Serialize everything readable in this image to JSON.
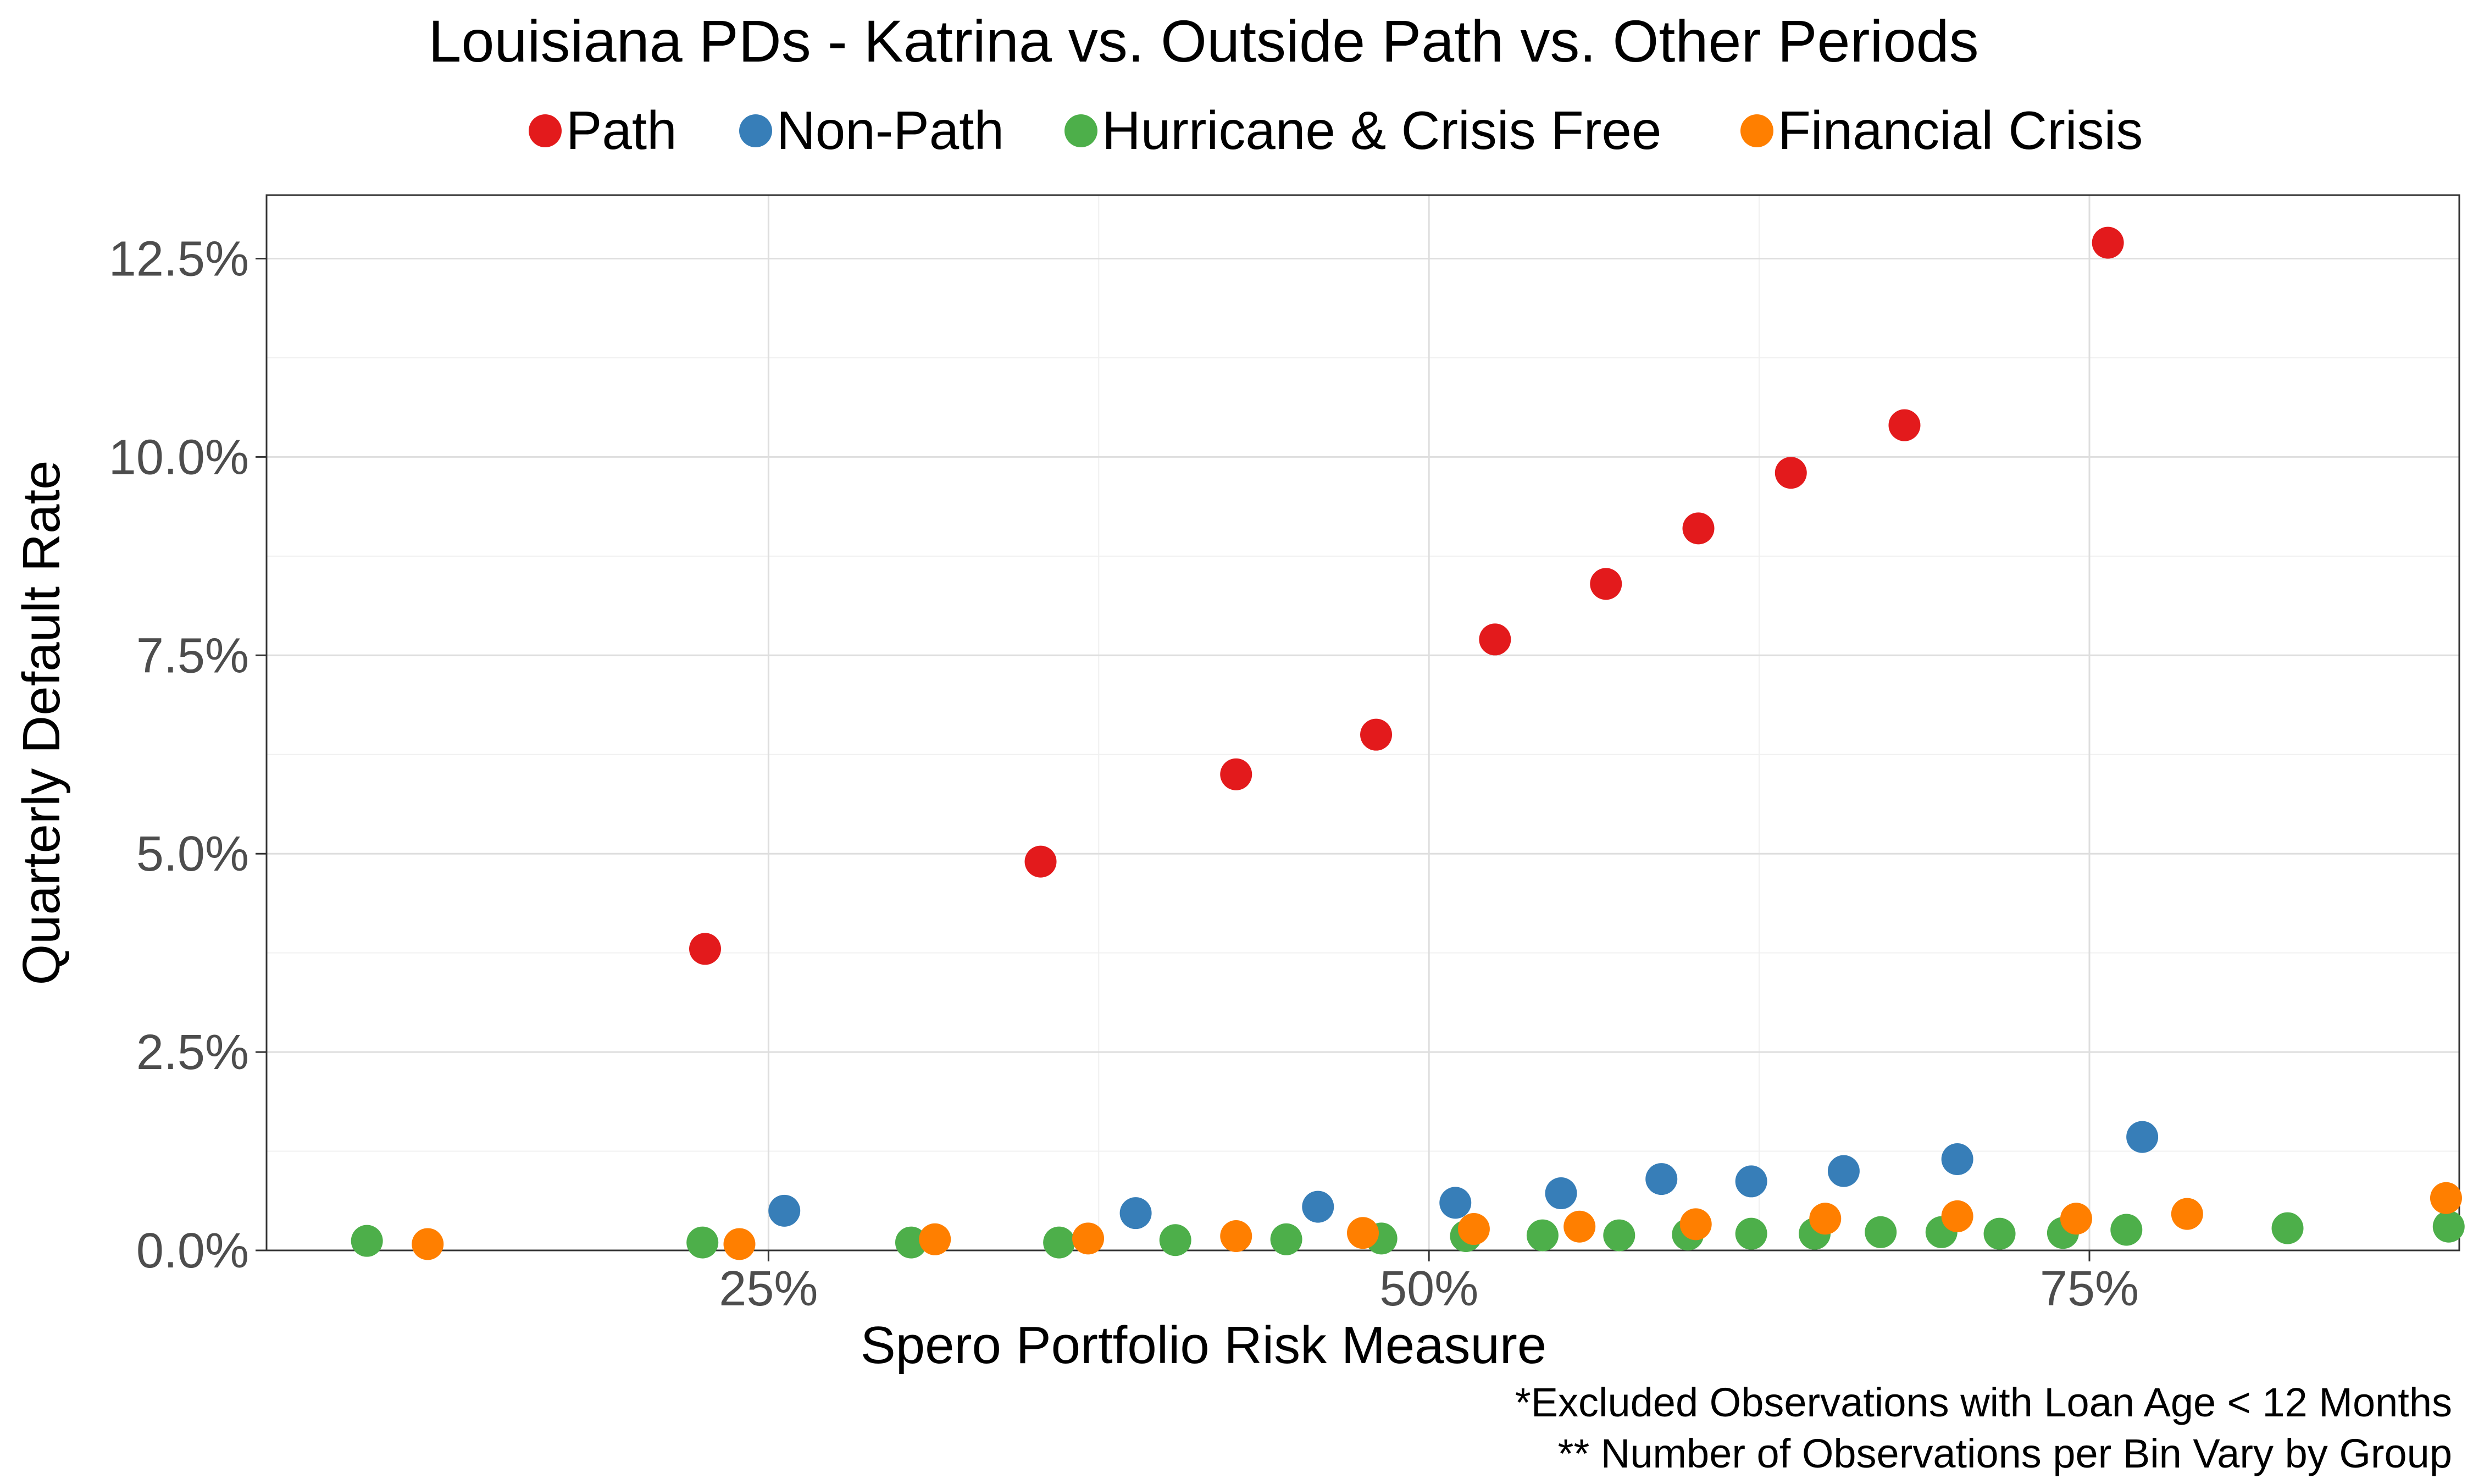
{
  "chart_data": {
    "type": "scatter",
    "title": "Louisiana PDs - Katrina vs. Outside Path vs. Other Periods",
    "xlabel": "Spero Portfolio Risk Measure",
    "ylabel": "Quarterly Default Rate",
    "xlim": [
      0.06,
      0.89
    ],
    "ylim": [
      0.0,
      0.133
    ],
    "x_ticks": [
      0.25,
      0.5,
      0.75
    ],
    "x_tick_labels": [
      "25%",
      "50%",
      "75%"
    ],
    "y_ticks": [
      0.0,
      0.025,
      0.05,
      0.075,
      0.1,
      0.125
    ],
    "y_tick_labels": [
      "0.0%",
      "2.5%",
      "5.0%",
      "7.5%",
      "10.0%",
      "12.5%"
    ],
    "grid": true,
    "legend_position": "top",
    "captions": [
      "*Excluded Observations with Loan Age < 12 Months",
      "** Number of Observations per Bin Vary by Group"
    ],
    "series": [
      {
        "name": "Path",
        "color": "#e31a1c",
        "points": [
          [
            0.226,
            0.038
          ],
          [
            0.353,
            0.049
          ],
          [
            0.427,
            0.06
          ],
          [
            0.48,
            0.065
          ],
          [
            0.525,
            0.077
          ],
          [
            0.567,
            0.084
          ],
          [
            0.602,
            0.091
          ],
          [
            0.637,
            0.098
          ],
          [
            0.68,
            0.104
          ],
          [
            0.757,
            0.127
          ]
        ]
      },
      {
        "name": "Non-Path",
        "color": "#377eb8",
        "points": [
          [
            0.256,
            0.005
          ],
          [
            0.389,
            0.0047
          ],
          [
            0.458,
            0.0055
          ],
          [
            0.51,
            0.006
          ],
          [
            0.55,
            0.0072
          ],
          [
            0.588,
            0.009
          ],
          [
            0.622,
            0.0087
          ],
          [
            0.657,
            0.01
          ],
          [
            0.7,
            0.0115
          ],
          [
            0.77,
            0.0143
          ]
        ]
      },
      {
        "name": "Hurricane & Crisis Free",
        "color": "#4daf4a",
        "points": [
          [
            0.098,
            0.0012
          ],
          [
            0.225,
            0.001
          ],
          [
            0.304,
            0.001
          ],
          [
            0.36,
            0.001
          ],
          [
            0.404,
            0.0013
          ],
          [
            0.446,
            0.0014
          ],
          [
            0.482,
            0.0015
          ],
          [
            0.514,
            0.0018
          ],
          [
            0.543,
            0.0019
          ],
          [
            0.572,
            0.0019
          ],
          [
            0.598,
            0.002
          ],
          [
            0.622,
            0.0021
          ],
          [
            0.646,
            0.0021
          ],
          [
            0.671,
            0.0023
          ],
          [
            0.694,
            0.0023
          ],
          [
            0.716,
            0.0021
          ],
          [
            0.74,
            0.0022
          ],
          [
            0.764,
            0.0026
          ],
          [
            0.825,
            0.0028
          ],
          [
            0.886,
            0.003
          ]
        ]
      },
      {
        "name": "Financial Crisis",
        "color": "#ff7f00",
        "points": [
          [
            0.121,
            0.0008
          ],
          [
            0.239,
            0.0008
          ],
          [
            0.313,
            0.0014
          ],
          [
            0.371,
            0.0015
          ],
          [
            0.427,
            0.0018
          ],
          [
            0.475,
            0.0022
          ],
          [
            0.517,
            0.0027
          ],
          [
            0.557,
            0.003
          ],
          [
            0.601,
            0.0033
          ],
          [
            0.65,
            0.004
          ],
          [
            0.7,
            0.0043
          ],
          [
            0.745,
            0.004
          ],
          [
            0.787,
            0.0046
          ],
          [
            0.885,
            0.0066
          ]
        ]
      }
    ]
  }
}
